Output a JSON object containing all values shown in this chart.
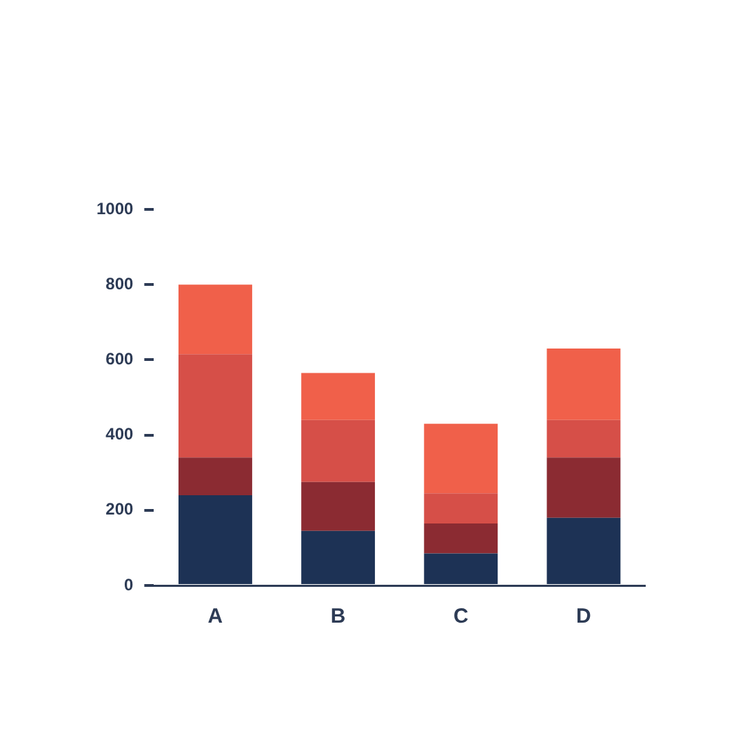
{
  "chart_data": {
    "type": "bar",
    "stacked": true,
    "categories": [
      "A",
      "B",
      "C",
      "D"
    ],
    "series": [
      {
        "color": "#1d3255",
        "values": [
          240,
          145,
          85,
          180
        ]
      },
      {
        "color": "#8b2b32",
        "values": [
          100,
          130,
          80,
          160
        ]
      },
      {
        "color": "#d64f48",
        "values": [
          275,
          165,
          80,
          100
        ]
      },
      {
        "color": "#f0604a",
        "values": [
          185,
          125,
          185,
          190
        ]
      }
    ],
    "ylim": [
      0,
      1000
    ],
    "yticks": [
      0,
      200,
      400,
      600,
      800,
      1000
    ],
    "grid": false,
    "legend": false
  }
}
